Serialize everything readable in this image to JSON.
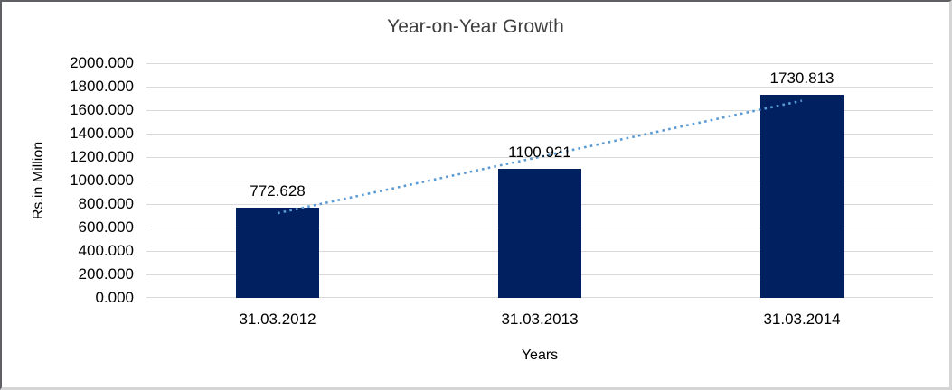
{
  "chart_data": {
    "type": "bar",
    "title": "Year-on-Year Growth",
    "categories": [
      "31.03.2012",
      "31.03.2013",
      "31.03.2014"
    ],
    "values": [
      772.628,
      1100.921,
      1730.813
    ],
    "data_labels": [
      "772.628",
      "1100.921",
      "1730.813"
    ],
    "xlabel": "Years",
    "ylabel": "Rs.in Million",
    "ylim": [
      0,
      2000
    ],
    "ytick_step": 200,
    "ytick_labels": [
      "2000.000",
      "1800.000",
      "1600.000",
      "1400.000",
      "1200.000",
      "1000.000",
      "800.000",
      "600.000",
      "400.000",
      "200.000",
      "0.000"
    ],
    "grid": true,
    "legend": "none",
    "bar_color": "#002060",
    "gridline_color": "#d9d9d9",
    "title_color": "#3f3f3f",
    "text_color": "#000000",
    "trendline": {
      "type": "linear",
      "style": "dotted",
      "color": "#5b9bd5"
    }
  }
}
